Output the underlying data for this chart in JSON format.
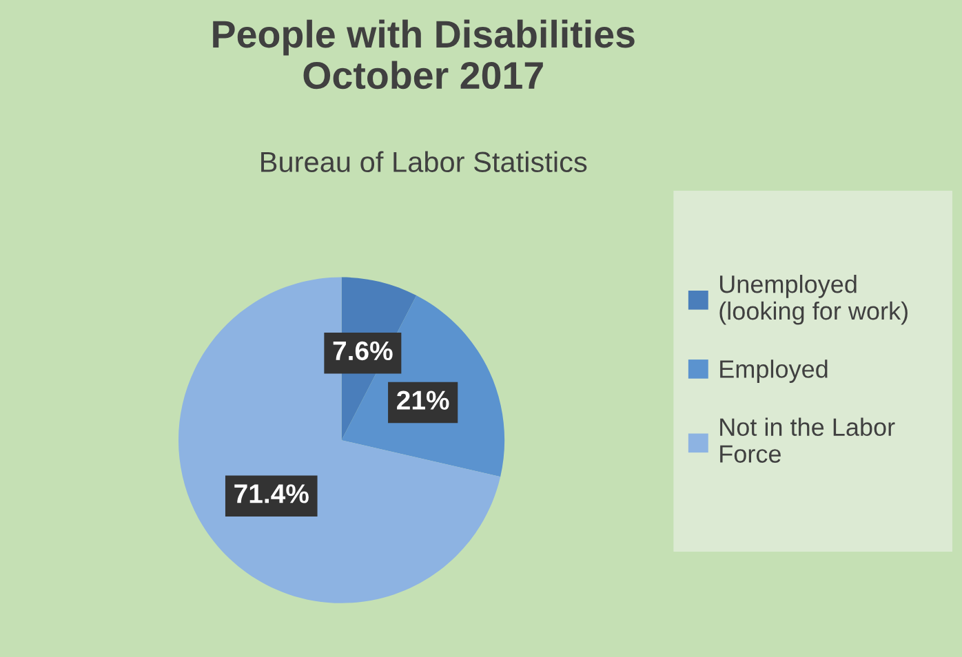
{
  "chart_data": {
    "type": "pie",
    "title": "People with Disabilities\nOctober 2017",
    "subtitle": "Bureau of Labor Statistics",
    "categories": [
      "Unemployed\n(looking for work)",
      "Employed",
      "Not in the Labor\nForce"
    ],
    "values": [
      7.6,
      21,
      71.4
    ],
    "value_labels": [
      "7.6%",
      "21%",
      "71.4%"
    ],
    "colors": [
      "#4a7ebb",
      "#5b93cf",
      "#8db3e2"
    ],
    "legend": "right"
  }
}
